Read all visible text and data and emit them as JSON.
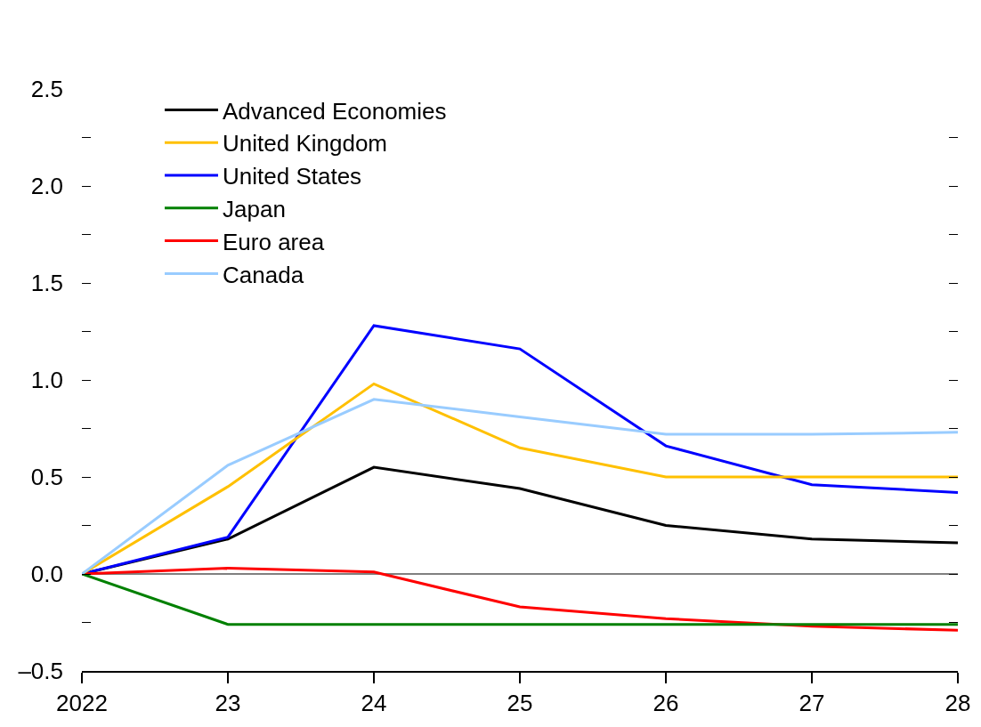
{
  "chart_data": {
    "type": "line",
    "x": [
      2022,
      2023,
      2024,
      2025,
      2026,
      2027,
      2028
    ],
    "series": [
      {
        "name": "Advanced Economies",
        "color": "#000000",
        "values": [
          0,
          0.18,
          0.55,
          0.44,
          0.25,
          0.18,
          0.16
        ]
      },
      {
        "name": "United States",
        "color": "#0000ff",
        "values": [
          0,
          0.19,
          1.28,
          1.16,
          0.66,
          0.46,
          0.42
        ]
      },
      {
        "name": "Euro area",
        "color": "#ff0000",
        "values": [
          0,
          0.03,
          0.01,
          -0.17,
          -0.23,
          -0.27,
          -0.29
        ]
      },
      {
        "name": "United Kingdom",
        "color": "#ffc000",
        "values": [
          0,
          0.45,
          0.98,
          0.65,
          0.5,
          0.5,
          0.5
        ]
      },
      {
        "name": "Japan",
        "color": "#008000",
        "values": [
          0,
          -0.26,
          -0.26,
          -0.26,
          -0.26,
          -0.26,
          -0.26
        ]
      },
      {
        "name": "Canada",
        "color": "#99ccff",
        "values": [
          0,
          0.56,
          0.9,
          0.81,
          0.72,
          0.72,
          0.73
        ]
      }
    ],
    "xlim": [
      2022,
      2028
    ],
    "xticks": [
      {
        "value": 2022,
        "label": "2022"
      },
      {
        "value": 2023,
        "label": "23"
      },
      {
        "value": 2024,
        "label": "24"
      },
      {
        "value": 2025,
        "label": "25"
      },
      {
        "value": 2026,
        "label": "26"
      },
      {
        "value": 2027,
        "label": "27"
      },
      {
        "value": 2028,
        "label": "28"
      }
    ],
    "ylim": [
      -0.5,
      2.5
    ],
    "yticks": [
      {
        "value": -0.5,
        "label": "–0.5"
      },
      {
        "value": -0.25,
        "label": null
      },
      {
        "value": 0,
        "label": "0.0"
      },
      {
        "value": 0.25,
        "label": null
      },
      {
        "value": 0.5,
        "label": "0.5"
      },
      {
        "value": 0.75,
        "label": null
      },
      {
        "value": 1.0,
        "label": "1.0"
      },
      {
        "value": 1.25,
        "label": null
      },
      {
        "value": 1.5,
        "label": "1.5"
      },
      {
        "value": 1.75,
        "label": null
      },
      {
        "value": 2.0,
        "label": "2.0"
      },
      {
        "value": 2.25,
        "label": null
      },
      {
        "value": 2.5,
        "label": "2.5"
      }
    ],
    "ref_lines": [
      {
        "axis": "y",
        "value": 0,
        "color": "#000000"
      }
    ],
    "legend": "top",
    "grid": false,
    "marker": "none",
    "line_style": "solid"
  }
}
